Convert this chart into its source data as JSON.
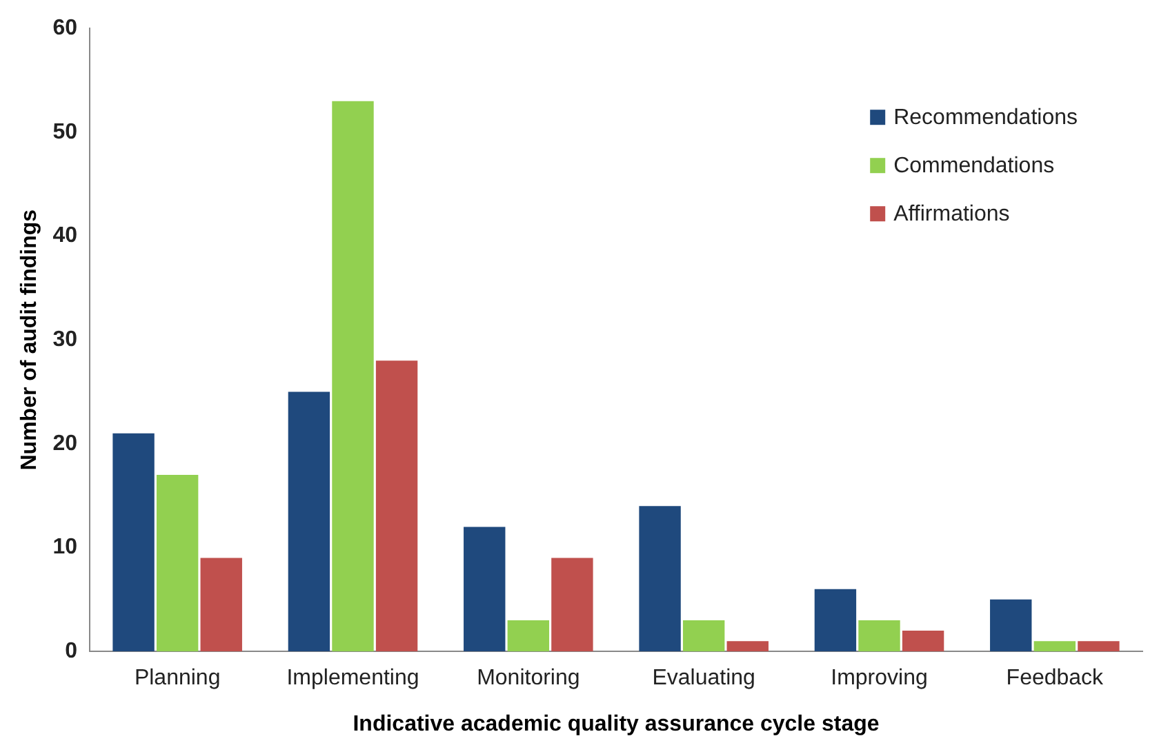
{
  "chart_data": {
    "type": "bar",
    "xlabel": "Indicative academic quality assurance cycle stage",
    "ylabel": "Number of audit findings",
    "categories": [
      "Planning",
      "Implementing",
      "Monitoring",
      "Evaluating",
      "Improving",
      "Feedback"
    ],
    "series": [
      {
        "name": "Recommendations",
        "color": "#1f497d",
        "values": [
          21,
          25,
          12,
          14,
          6,
          5
        ]
      },
      {
        "name": "Commendations",
        "color": "#92d050",
        "values": [
          17,
          53,
          3,
          3,
          3,
          1
        ]
      },
      {
        "name": "Affirmations",
        "color": "#c0504d",
        "values": [
          9,
          28,
          9,
          1,
          2,
          1
        ]
      }
    ],
    "ylim": [
      0,
      60
    ],
    "yticks": [
      0,
      10,
      20,
      30,
      40,
      50,
      60
    ],
    "grid": false,
    "legend": "top right"
  }
}
